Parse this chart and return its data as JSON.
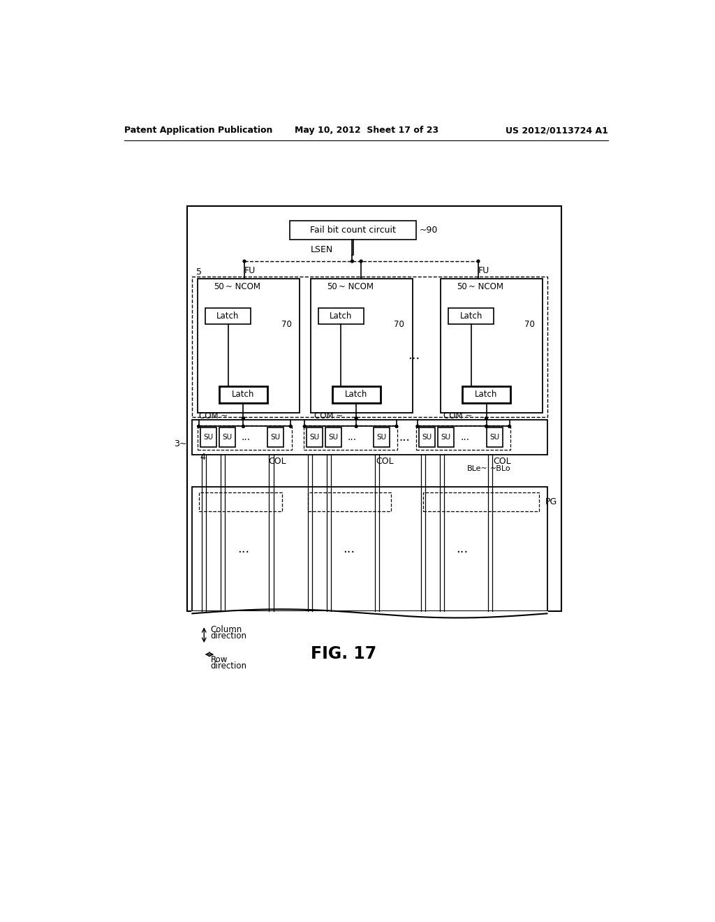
{
  "header_left": "Patent Application Publication",
  "header_mid": "May 10, 2012  Sheet 17 of 23",
  "header_right": "US 2012/0113724 A1",
  "fig_label": "FIG. 17",
  "background": "#ffffff",
  "line_color": "#000000"
}
